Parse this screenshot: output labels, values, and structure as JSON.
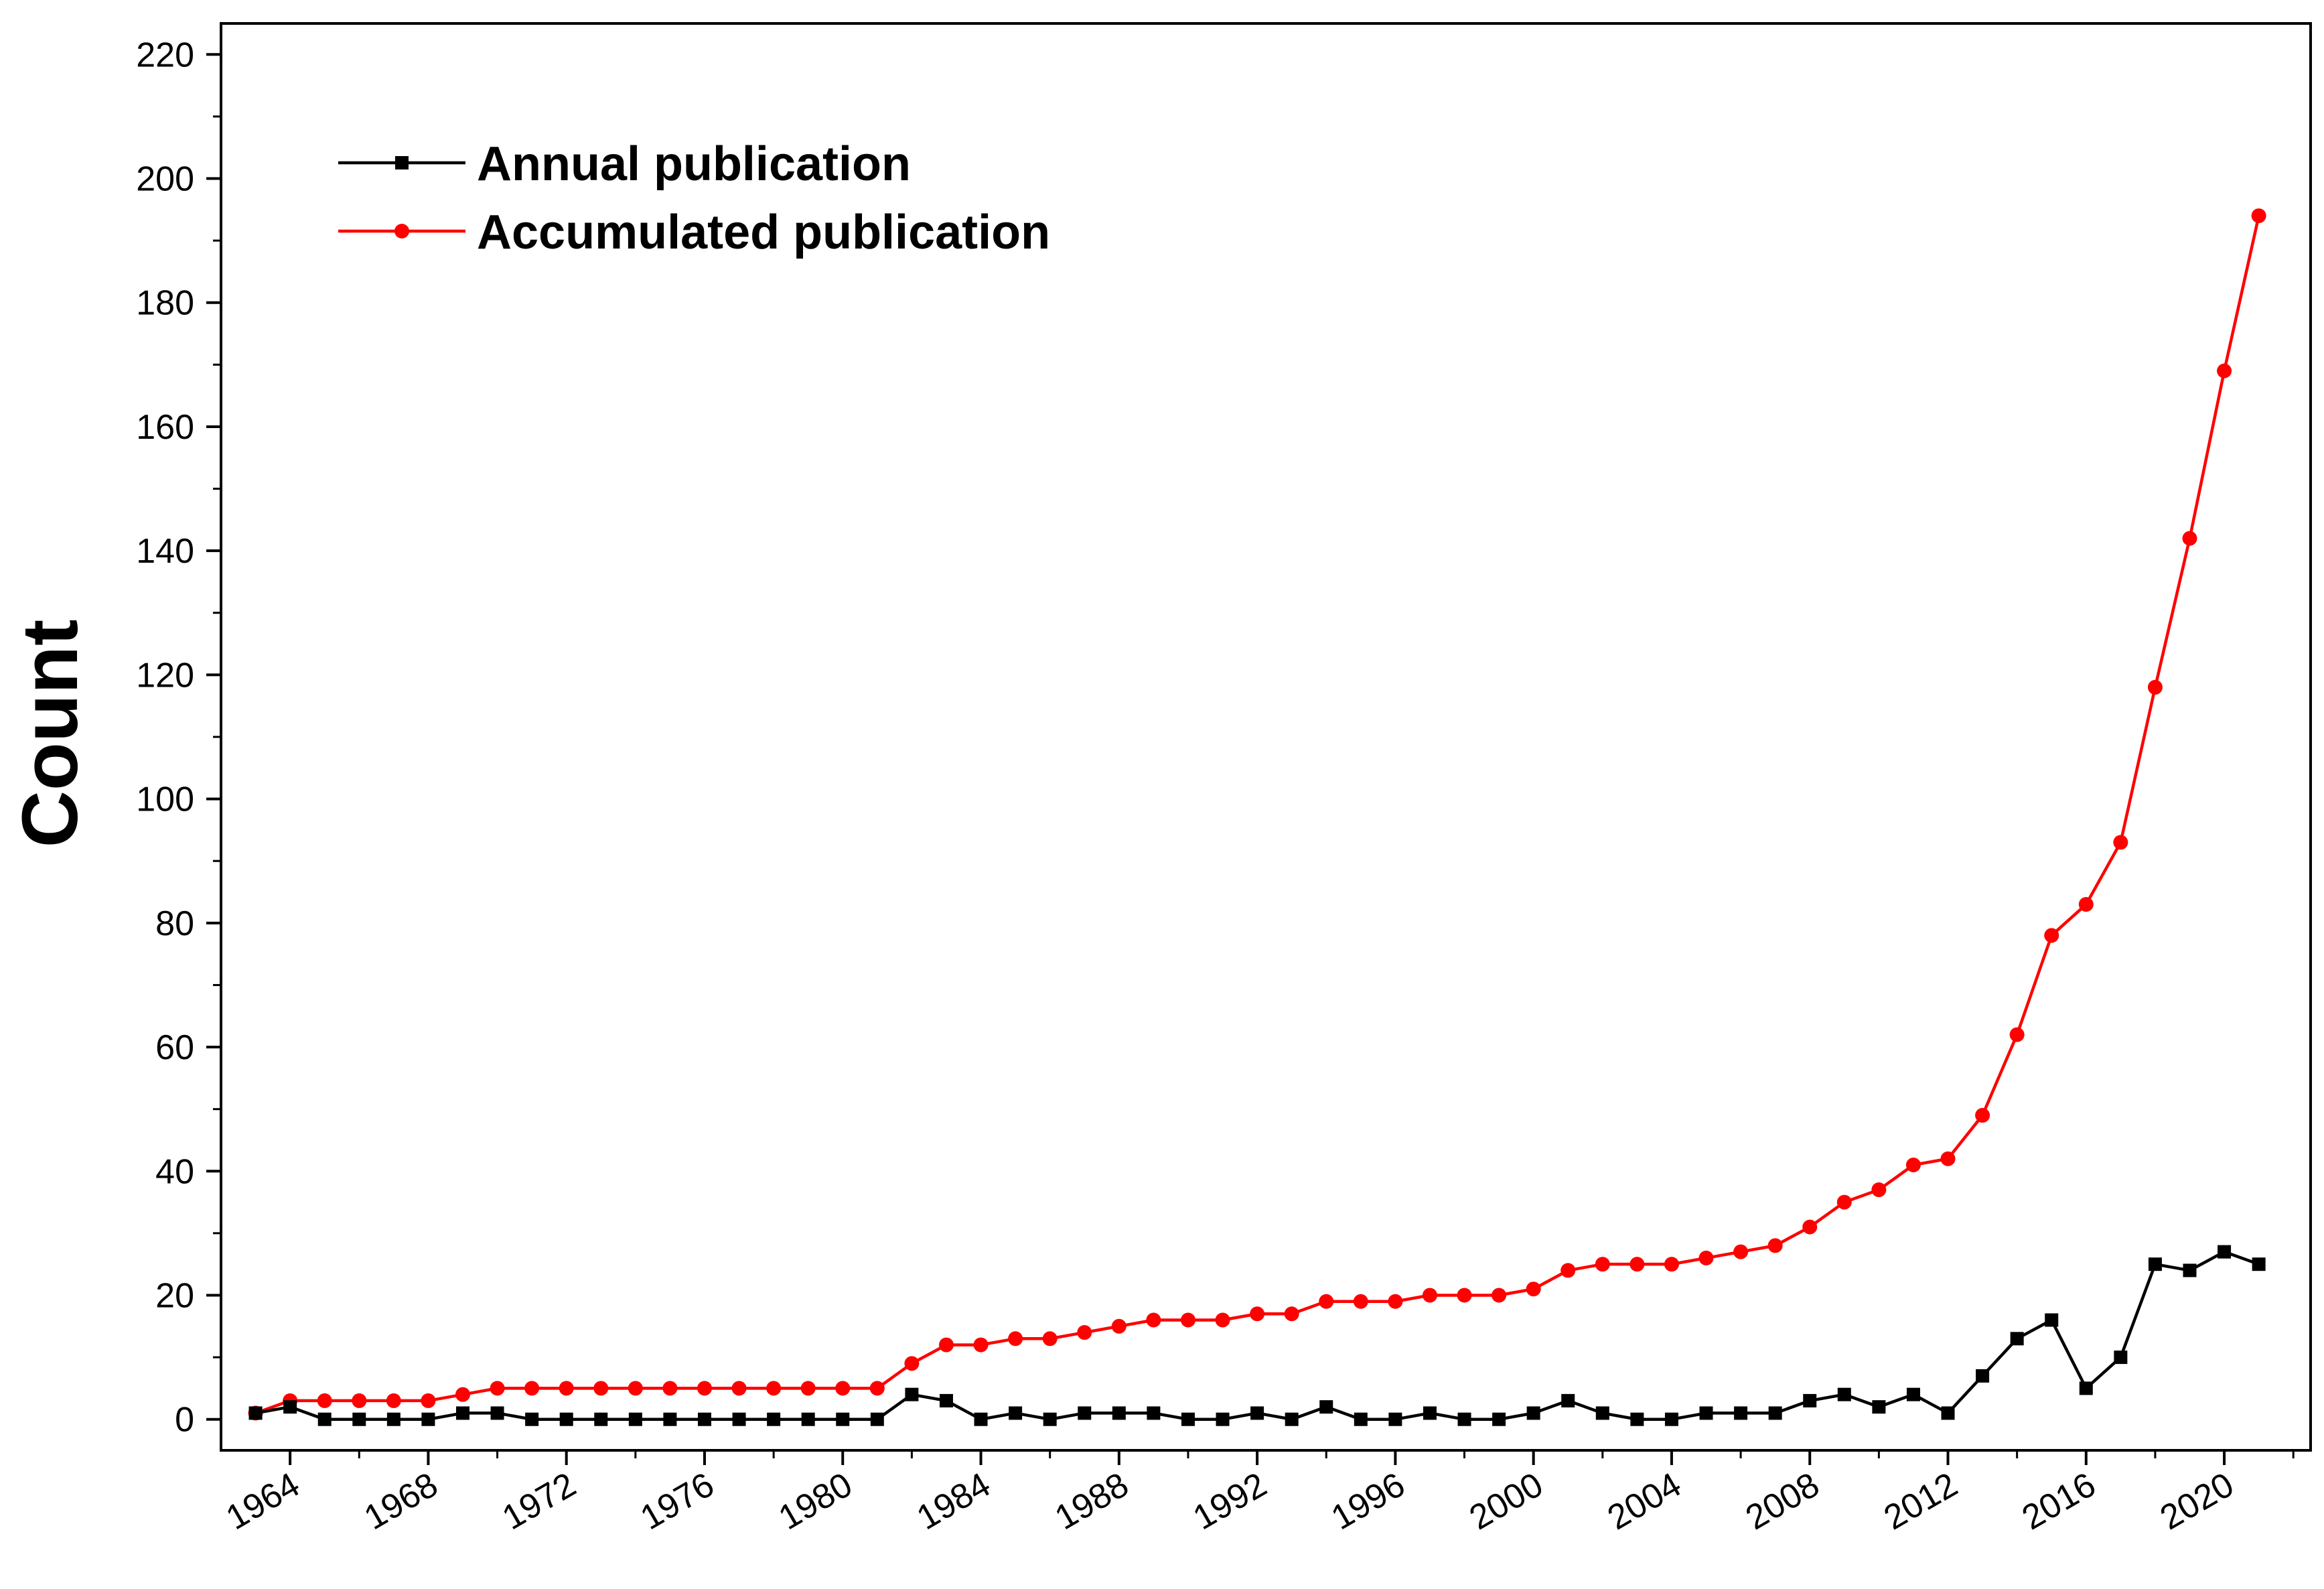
{
  "chart_data": {
    "type": "line",
    "title": "",
    "xlabel": "",
    "ylabel": "Count",
    "xlim": [
      1962,
      2022.5
    ],
    "ylim": [
      -5,
      225
    ],
    "x_ticks": [
      1964,
      1968,
      1972,
      1976,
      1980,
      1984,
      1988,
      1992,
      1996,
      2000,
      2004,
      2008,
      2012,
      2016,
      2020
    ],
    "y_ticks": [
      0,
      20,
      40,
      60,
      80,
      100,
      120,
      140,
      160,
      180,
      200,
      220
    ],
    "grid": false,
    "legend_position": "top-left",
    "x": [
      1963,
      1964,
      1965,
      1966,
      1967,
      1968,
      1969,
      1970,
      1971,
      1972,
      1973,
      1974,
      1975,
      1976,
      1977,
      1978,
      1979,
      1980,
      1981,
      1982,
      1983,
      1984,
      1985,
      1986,
      1987,
      1988,
      1989,
      1990,
      1991,
      1992,
      1993,
      1994,
      1995,
      1996,
      1997,
      1998,
      1999,
      2000,
      2001,
      2002,
      2003,
      2004,
      2005,
      2006,
      2007,
      2008,
      2009,
      2010,
      2011,
      2012,
      2013,
      2014,
      2015,
      2016,
      2017,
      2018,
      2019,
      2020,
      2021
    ],
    "series": [
      {
        "name": "Annual publication",
        "color": "#000000",
        "marker": "square",
        "values": [
          1,
          2,
          0,
          0,
          0,
          0,
          1,
          1,
          0,
          0,
          0,
          0,
          0,
          0,
          0,
          0,
          0,
          0,
          0,
          4,
          3,
          0,
          1,
          0,
          1,
          1,
          1,
          0,
          0,
          1,
          0,
          2,
          0,
          0,
          1,
          0,
          0,
          1,
          3,
          1,
          0,
          0,
          1,
          1,
          1,
          3,
          4,
          2,
          4,
          1,
          7,
          13,
          16,
          5,
          10,
          25,
          24,
          27,
          25
        ]
      },
      {
        "name": "Accumulated publication",
        "color": "#ff0000",
        "marker": "circle",
        "values": [
          1,
          3,
          3,
          3,
          3,
          3,
          4,
          5,
          5,
          5,
          5,
          5,
          5,
          5,
          5,
          5,
          5,
          5,
          5,
          9,
          12,
          12,
          13,
          13,
          14,
          15,
          16,
          16,
          16,
          17,
          17,
          19,
          19,
          19,
          20,
          20,
          20,
          21,
          24,
          25,
          25,
          25,
          26,
          27,
          28,
          31,
          35,
          37,
          41,
          42,
          49,
          62,
          78,
          83,
          93,
          118,
          142,
          169,
          194
        ]
      }
    ]
  }
}
